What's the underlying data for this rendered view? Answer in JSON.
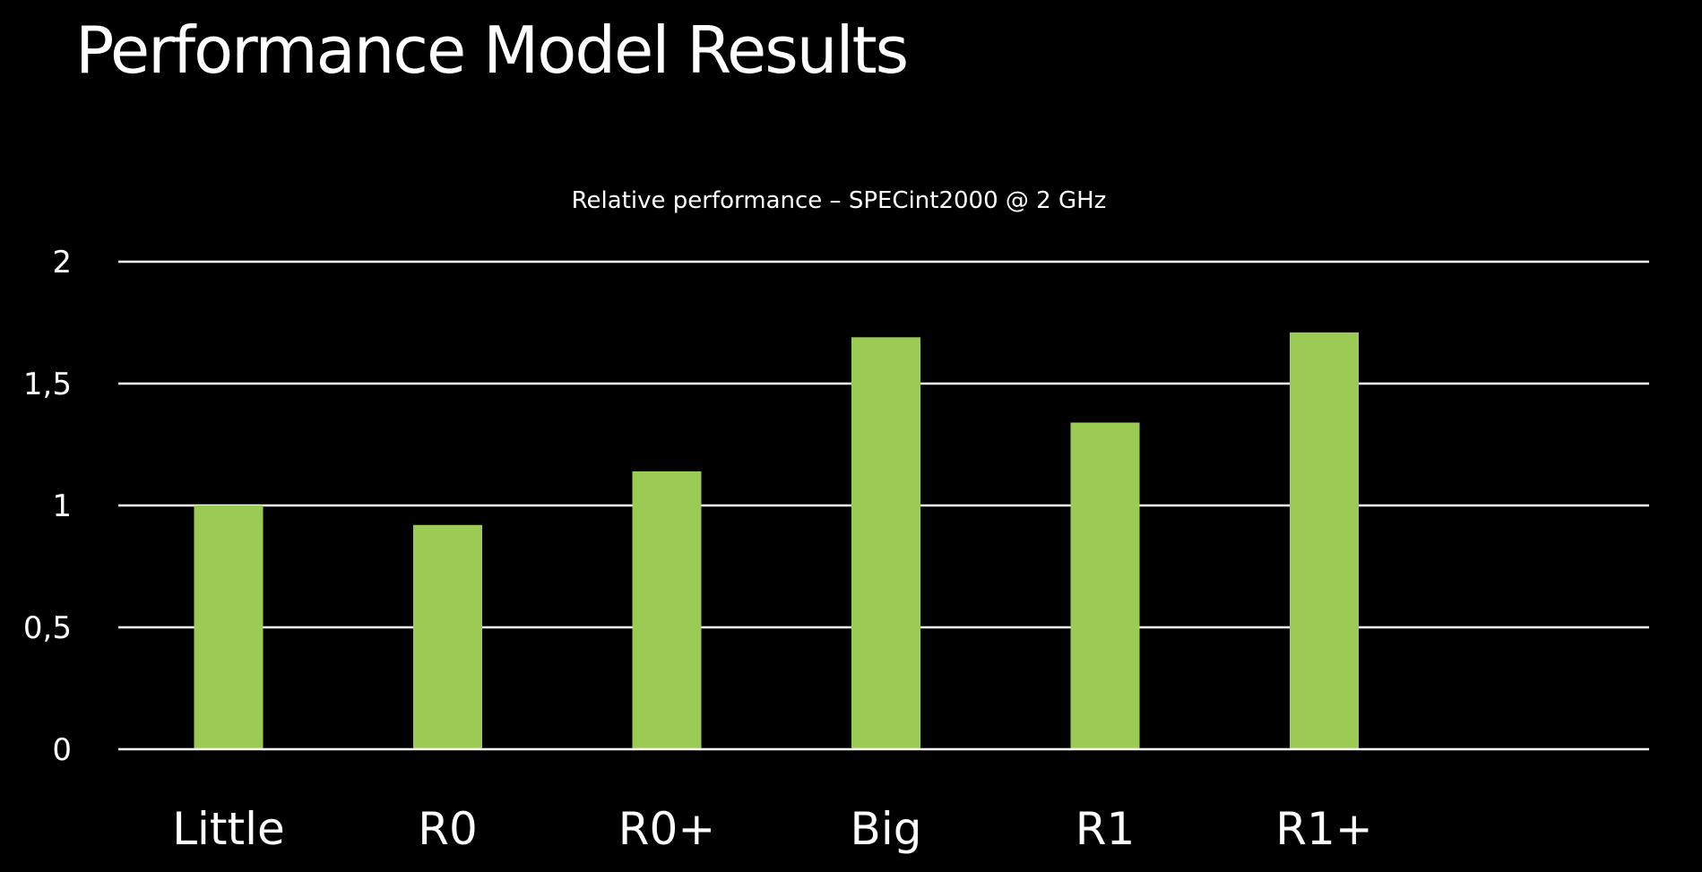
{
  "slide": {
    "title": "Performance Model Results"
  },
  "chart_data": {
    "type": "bar",
    "title": "Relative performance – SPECint2000 @ 2 GHz",
    "categories": [
      "Little",
      "R0",
      "R0+",
      "Big",
      "R1",
      "R1+"
    ],
    "values": [
      1.0,
      0.92,
      1.14,
      1.69,
      1.34,
      1.71
    ],
    "ylim": [
      0,
      2
    ],
    "yticks": [
      0,
      0.5,
      1,
      1.5,
      2
    ],
    "ytick_labels": [
      "0",
      "0,5",
      "1",
      "1,5",
      "2"
    ],
    "grid": true,
    "legend": "none",
    "colors": {
      "background": "#000000",
      "bar": "#9ccb55",
      "gridline": "#ffffff",
      "text": "#ffffff"
    }
  }
}
